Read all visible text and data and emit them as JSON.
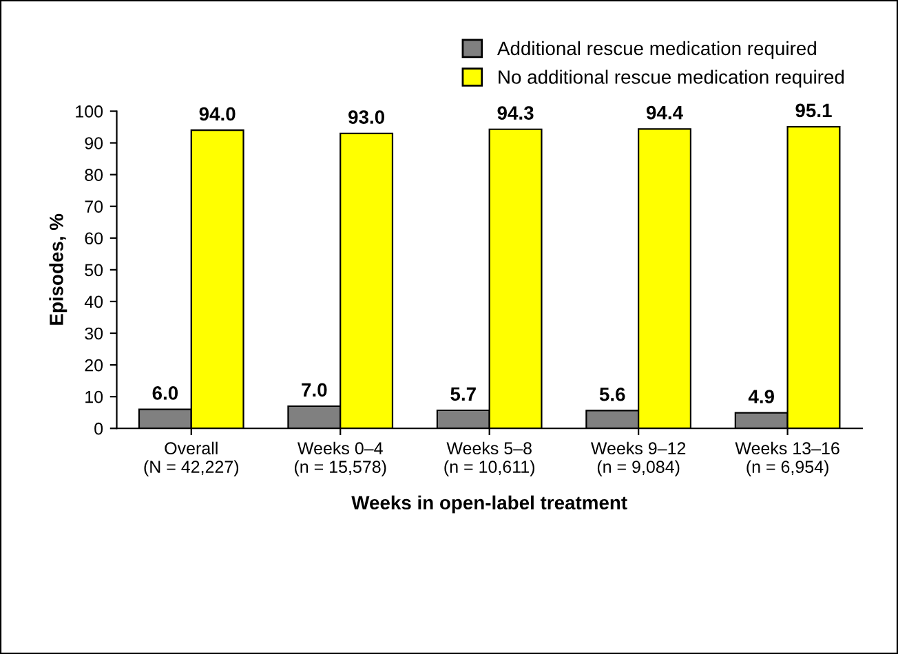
{
  "chart_data": {
    "type": "bar",
    "xlabel": "Weeks in open-label treatment",
    "ylabel": "Episodes, %",
    "categories": [
      "Overall\n(N = 42,227)",
      "Weeks 0–4\n(n = 15,578)",
      "Weeks 5–8\n(n = 10,611)",
      "Weeks 9–12\n(n = 9,084)",
      "Weeks 13–16\n(n = 6,954)"
    ],
    "series": [
      {
        "name": "Additional rescue medication required",
        "color": "#808080",
        "values": [
          6.0,
          7.0,
          5.7,
          5.6,
          4.9
        ],
        "value_labels": [
          "6.0",
          "7.0",
          "5.7",
          "5.6",
          "4.9"
        ]
      },
      {
        "name": "No additional rescue medication required",
        "color": "#ffff00",
        "values": [
          94.0,
          93.0,
          94.3,
          94.4,
          95.1
        ],
        "value_labels": [
          "94.0",
          "93.0",
          "94.3",
          "94.4",
          "95.1"
        ]
      }
    ],
    "ylim": [
      0,
      100
    ],
    "yticks": [
      0,
      10,
      20,
      30,
      40,
      50,
      60,
      70,
      80,
      90,
      100
    ],
    "grid": false,
    "legend": "top right"
  }
}
